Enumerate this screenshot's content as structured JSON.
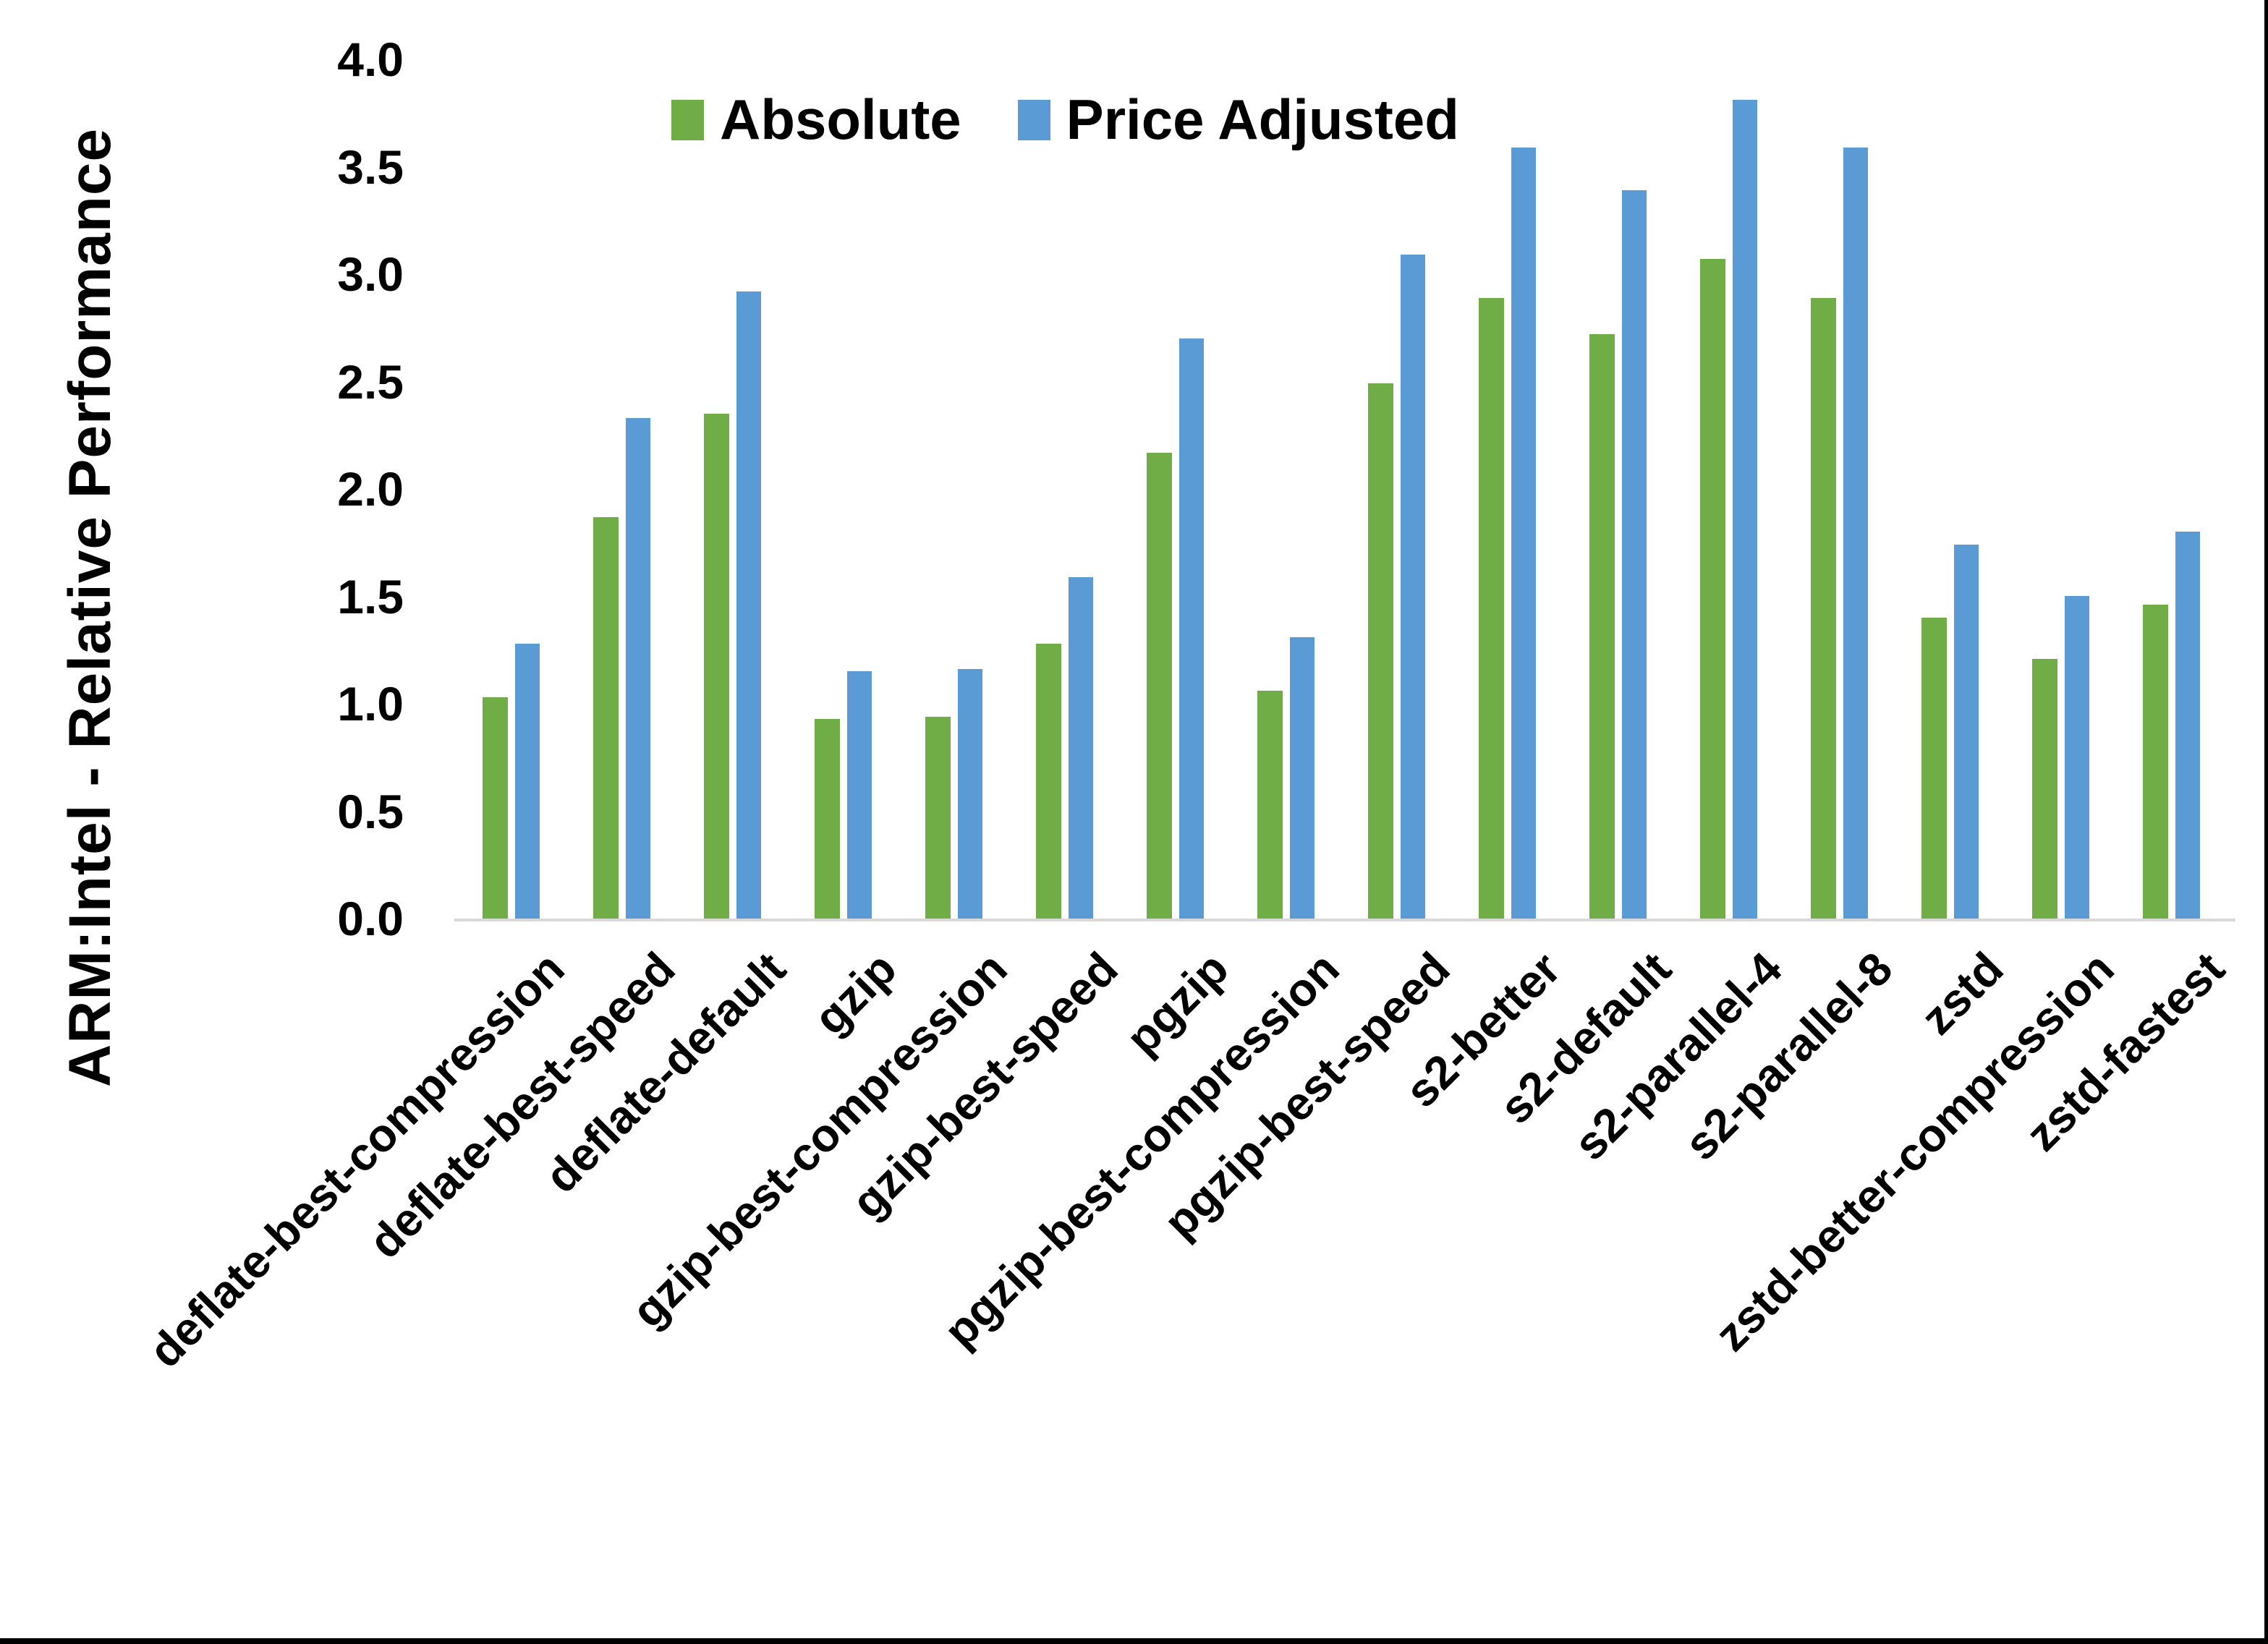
{
  "chart_data": {
    "type": "bar",
    "title": "",
    "xlabel": "",
    "ylabel": "ARM:Intel - Relative Performance",
    "ylim": [
      0.0,
      4.0
    ],
    "ytick_step": 0.5,
    "ytick_labels": [
      "4.0",
      "3.5",
      "3.0",
      "2.5",
      "2.0",
      "1.5",
      "1.0",
      "0.5",
      "0.0"
    ],
    "grid": false,
    "legend_position": "top-center",
    "categories": [
      "deflate-best-compression",
      "deflate-best-speed",
      "deflate-default",
      "gzip",
      "gzip-best-compression",
      "gzip-best-speed",
      "pgzip",
      "pgzip-best-compression",
      "pgzip-best-speed",
      "s2-better",
      "s2-default",
      "s2-parallel-4",
      "s2-parallel-8",
      "zstd",
      "zstd-better-compression",
      "zstd-fastest"
    ],
    "series": [
      {
        "name": "Absolute",
        "color": "#70AD47",
        "values": [
          1.03,
          1.87,
          2.35,
          0.93,
          0.94,
          1.28,
          2.17,
          1.06,
          2.49,
          2.89,
          2.72,
          3.07,
          2.89,
          1.4,
          1.21,
          1.46
        ]
      },
      {
        "name": "Price Adjusted",
        "color": "#5B9BD5",
        "values": [
          1.28,
          2.33,
          2.92,
          1.15,
          1.16,
          1.59,
          2.7,
          1.31,
          3.09,
          3.59,
          3.39,
          3.81,
          3.59,
          1.74,
          1.5,
          1.8
        ]
      }
    ]
  },
  "colors": {
    "background": "#FFFFFF",
    "axis_line": "#D9D9D9",
    "text": "#000000",
    "frame_border": "#000000",
    "series_absolute": "#70AD47",
    "series_price_adjusted": "#5B9BD5"
  }
}
